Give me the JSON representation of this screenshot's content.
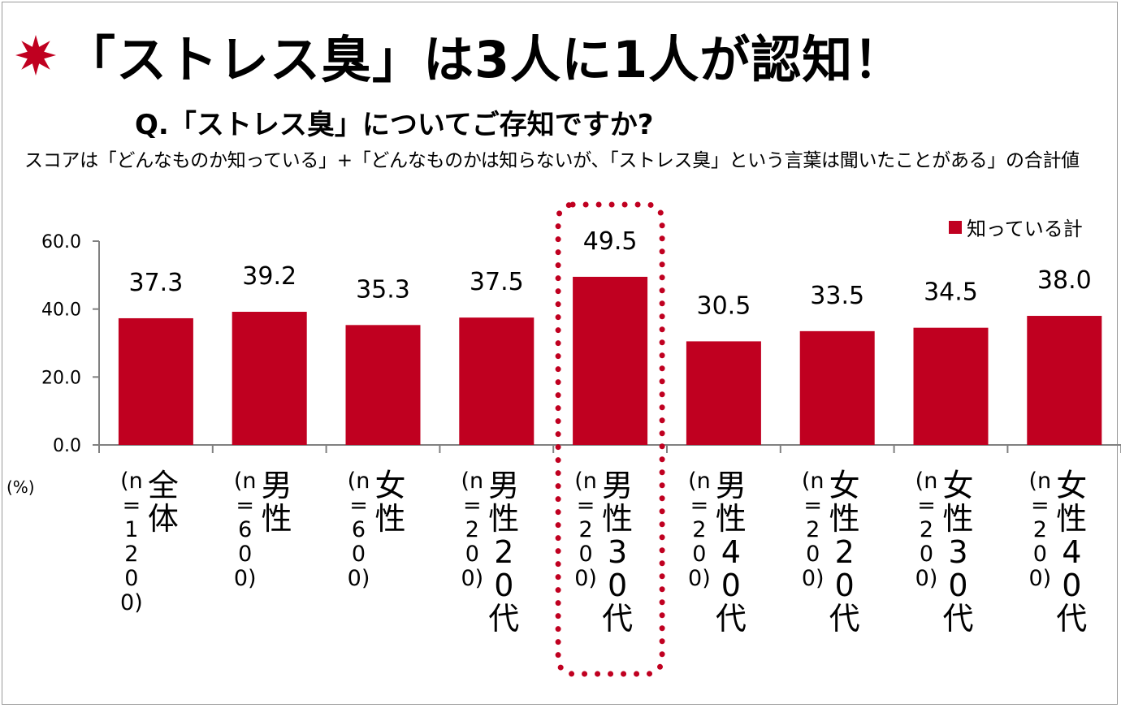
{
  "title": "「ストレス臭」は3人に1人が認知！",
  "question": "Q.「ストレス臭」についてご存知ですか?",
  "note": "スコアは「どんなものか知っている」+「どんなものかは知らないが、「ストレス臭」という言葉は聞いたことがある」の合計値",
  "colors": {
    "bar": "#c00020",
    "highlight": "#c00020",
    "axis": "#808080",
    "star": "#c00020"
  },
  "chart_data": {
    "type": "bar",
    "title": "Q.「ストレス臭」についてご存知ですか?",
    "ylabel": "(%)",
    "xlabel": "",
    "ylim": [
      0,
      60
    ],
    "yticks": [
      "0.0",
      "20.0",
      "40.0",
      "60.0"
    ],
    "grid": false,
    "legend": {
      "position": "top-right",
      "entries": [
        "知っている計"
      ]
    },
    "categories": [
      {
        "name": "全体",
        "n": "(n=1200)"
      },
      {
        "name": "男性",
        "n": "(n=600)"
      },
      {
        "name": "女性",
        "n": "(n=600)"
      },
      {
        "name": "男性20代",
        "n": "(n=200)"
      },
      {
        "name": "男性30代",
        "n": "(n=200)"
      },
      {
        "name": "男性40代",
        "n": "(n=200)"
      },
      {
        "name": "女性20代",
        "n": "(n=200)"
      },
      {
        "name": "女性30代",
        "n": "(n=200)"
      },
      {
        "name": "女性40代",
        "n": "(n=200)"
      }
    ],
    "series": [
      {
        "name": "知っている計",
        "values": [
          37.3,
          39.2,
          35.3,
          37.5,
          49.5,
          30.5,
          33.5,
          34.5,
          38.0
        ]
      }
    ],
    "value_labels": [
      "37.3",
      "39.2",
      "35.3",
      "37.5",
      "49.5",
      "30.5",
      "33.5",
      "34.5",
      "38.0"
    ],
    "highlight_category": "男性30代"
  }
}
